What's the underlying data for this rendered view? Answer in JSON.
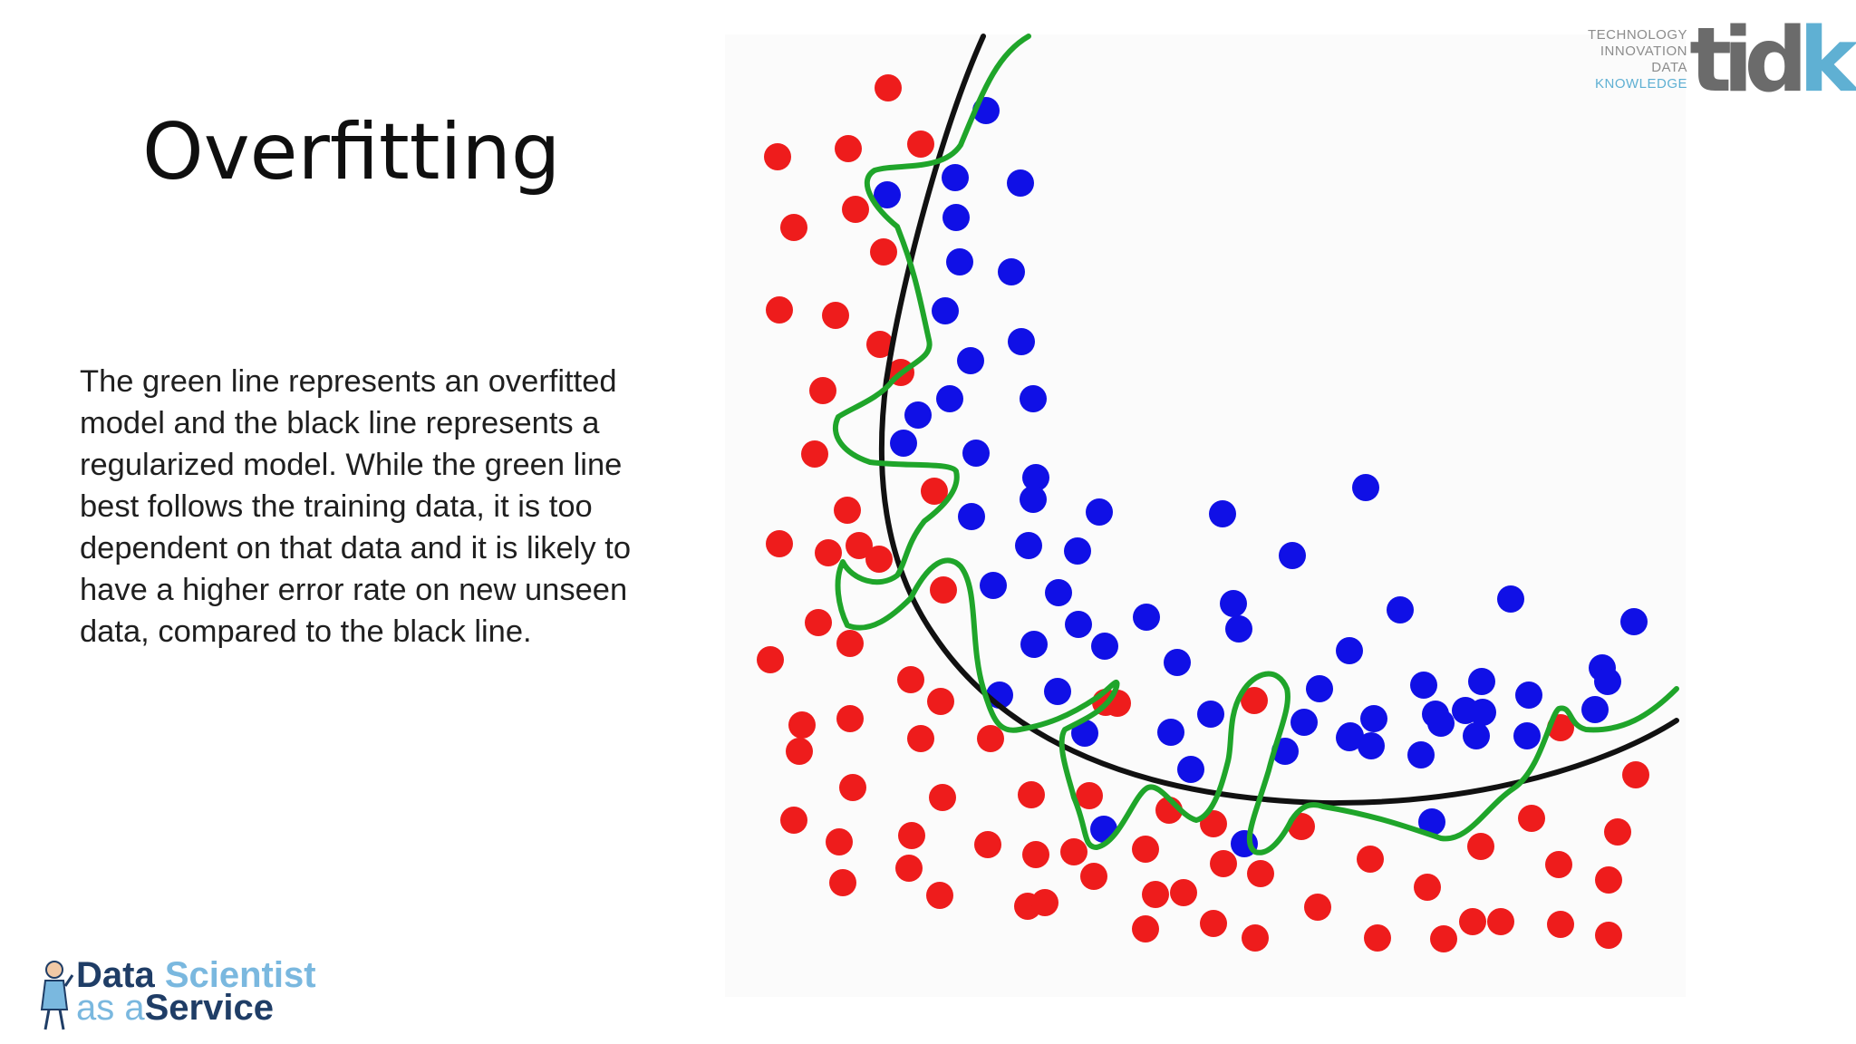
{
  "slide": {
    "title": "Overfitting",
    "body_lines": [
      "The green line represents an overfitted",
      "model and the black line represents a",
      "regularized model. While the green line",
      "best follows the training data, it is too",
      "dependent on that data and it is likely to",
      "have a higher error rate on new unseen",
      "data, compared to the black line."
    ]
  },
  "logos": {
    "tidk": {
      "words": [
        "TECHNOLOGY",
        "INNOVATION",
        "DATA",
        "KNOWLEDGE"
      ],
      "mark_main": "tid",
      "mark_accent": "k",
      "colors": {
        "gray": "#6b6b6b",
        "accent": "#5fb0d3"
      }
    },
    "dsaas": {
      "line1_a": "Data",
      "line1_b": "Scientist",
      "line2_a": "as a",
      "line2_b": "Service",
      "colors": {
        "dark": "#1f3d66",
        "light": "#7ab8df"
      }
    }
  },
  "colors": {
    "red_points": "#ee1c1c",
    "blue_points": "#1010e6",
    "green_line": "#1fa52a",
    "black_line": "#111111"
  }
}
